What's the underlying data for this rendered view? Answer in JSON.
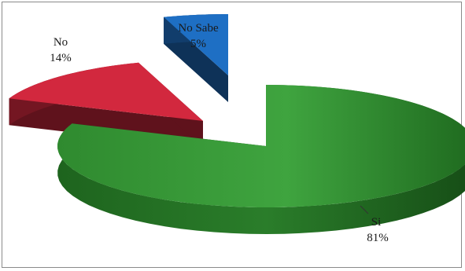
{
  "chart_data": {
    "type": "pie",
    "style": "3d-exploded",
    "title": "",
    "legend": "none",
    "slices": [
      {
        "label": "Si",
        "value": 81,
        "display": "81%",
        "color": "#3a9a3a"
      },
      {
        "label": "No",
        "value": 14,
        "display": "14%",
        "color": "#d2283e"
      },
      {
        "label": "No Sabe",
        "value": 5,
        "display": "5%",
        "color": "#1e6fc4"
      }
    ]
  }
}
